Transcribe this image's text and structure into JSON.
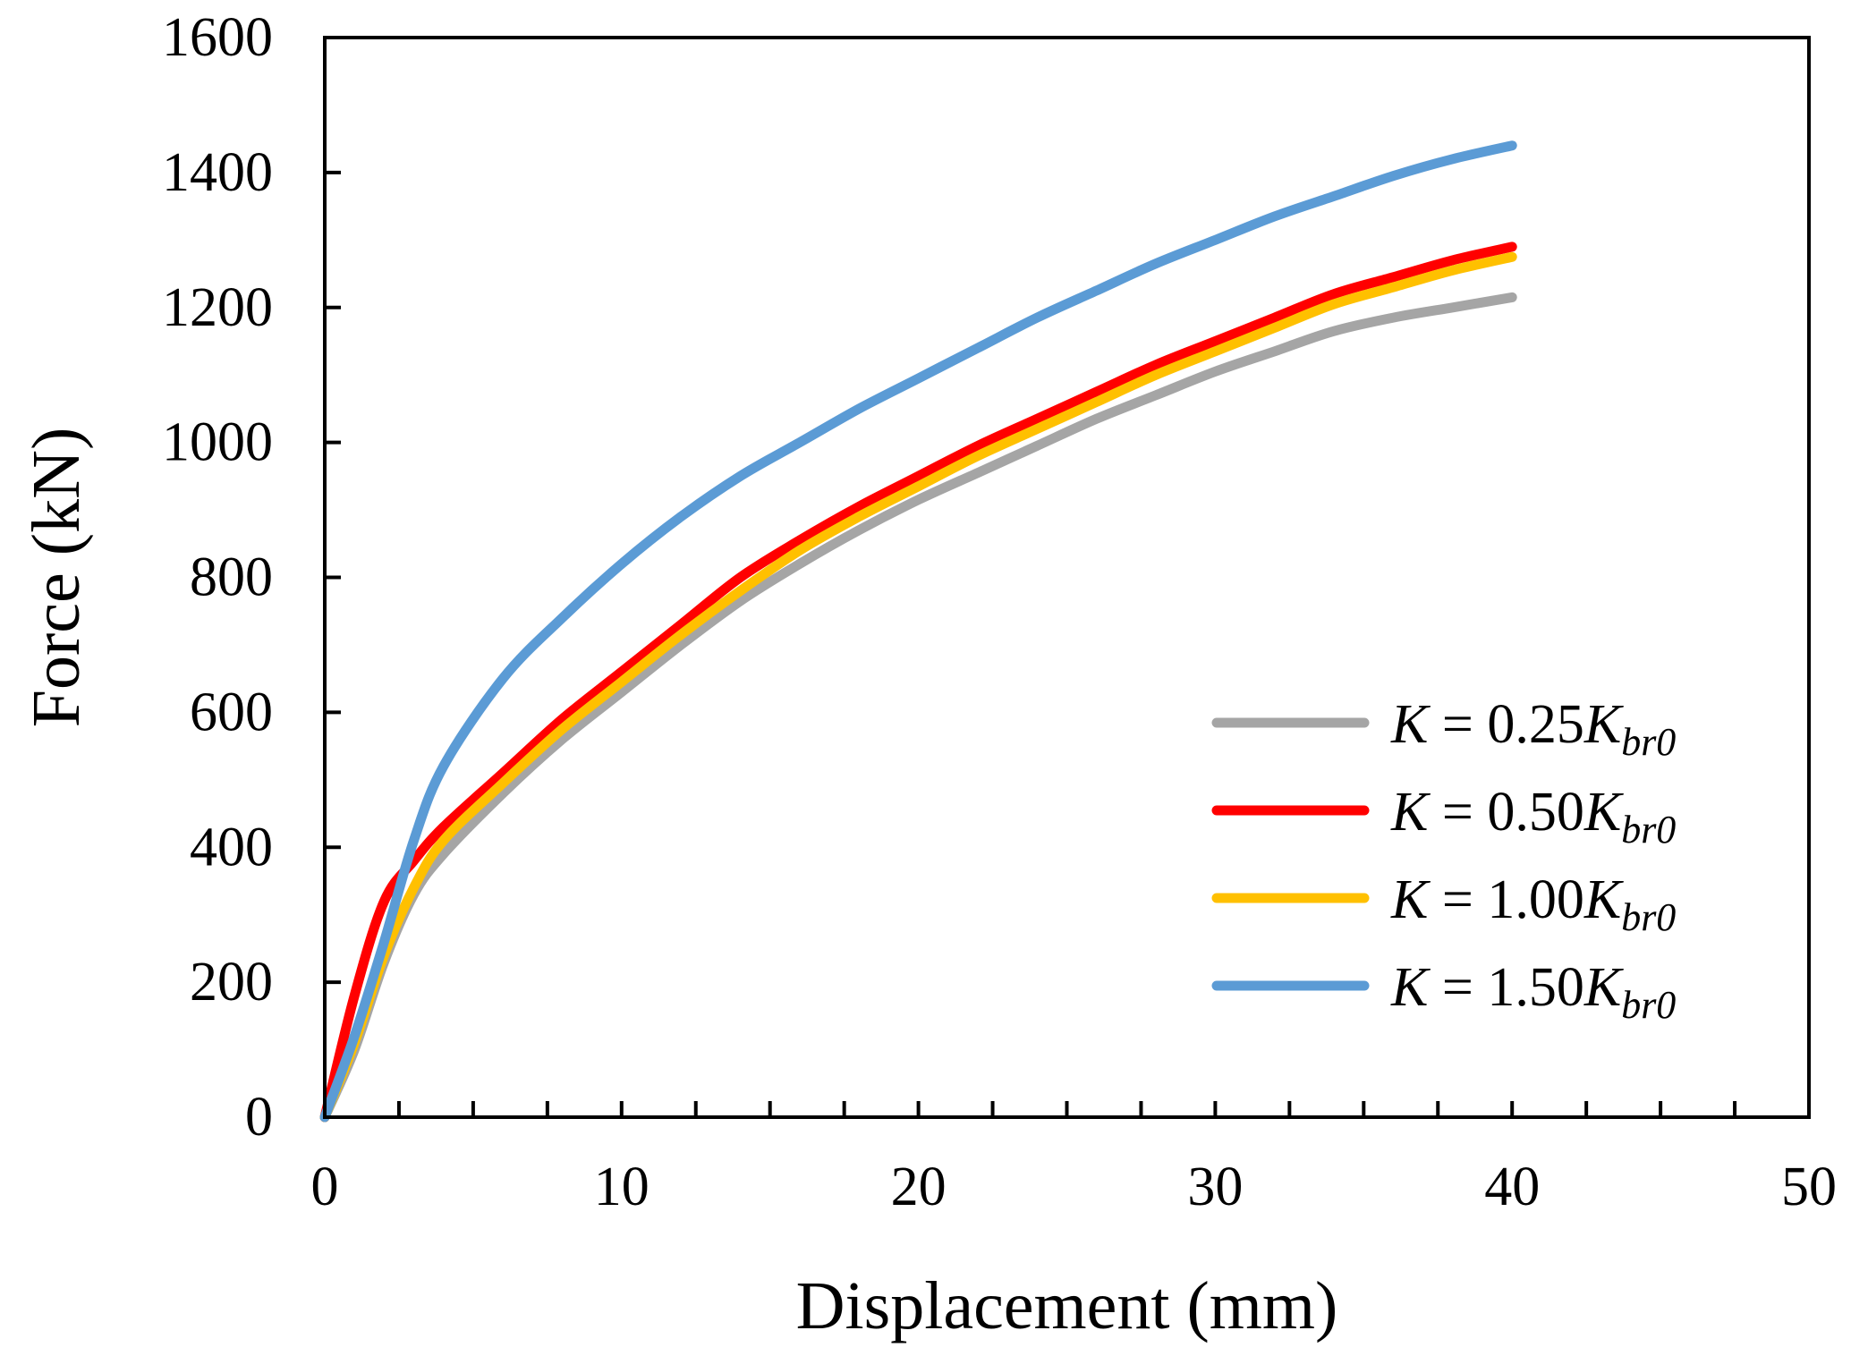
{
  "chart_data": {
    "type": "line",
    "title": "",
    "xlabel": "Displacement (mm)",
    "ylabel": "Force (kN)",
    "xlim": [
      0,
      50
    ],
    "ylim": [
      0,
      1600
    ],
    "x_ticks": [
      "0",
      "10",
      "20",
      "30",
      "40",
      "50"
    ],
    "y_ticks": [
      "0",
      "200",
      "400",
      "600",
      "800",
      "1000",
      "1200",
      "1400",
      "1600"
    ],
    "grid": false,
    "legend_position": "bottom-right",
    "series": [
      {
        "name": "K = 0.25Kbr0",
        "label_var": "K",
        "label_eq": " = 0.25",
        "label_sym": "K",
        "label_sub": "br0",
        "color": "#A5A5A5",
        "points": [
          [
            0,
            0
          ],
          [
            1,
            100
          ],
          [
            2,
            230
          ],
          [
            3,
            330
          ],
          [
            4,
            390
          ],
          [
            6,
            480
          ],
          [
            8,
            560
          ],
          [
            10,
            630
          ],
          [
            12,
            700
          ],
          [
            14,
            765
          ],
          [
            16,
            820
          ],
          [
            18,
            870
          ],
          [
            20,
            915
          ],
          [
            22,
            955
          ],
          [
            24,
            995
          ],
          [
            26,
            1035
          ],
          [
            28,
            1070
          ],
          [
            30,
            1105
          ],
          [
            32,
            1135
          ],
          [
            34,
            1165
          ],
          [
            36,
            1185
          ],
          [
            38,
            1200
          ],
          [
            40,
            1215
          ]
        ]
      },
      {
        "name": "K = 0.50Kbr0",
        "label_var": "K",
        "label_eq": " = 0.50",
        "label_sym": "K",
        "label_sub": "br0",
        "color": "#FF0000",
        "points": [
          [
            0,
            0
          ],
          [
            1,
            180
          ],
          [
            2,
            320
          ],
          [
            3,
            380
          ],
          [
            4,
            430
          ],
          [
            6,
            510
          ],
          [
            8,
            590
          ],
          [
            10,
            660
          ],
          [
            12,
            730
          ],
          [
            14,
            800
          ],
          [
            16,
            855
          ],
          [
            18,
            905
          ],
          [
            20,
            950
          ],
          [
            22,
            995
          ],
          [
            24,
            1035
          ],
          [
            26,
            1075
          ],
          [
            28,
            1115
          ],
          [
            30,
            1150
          ],
          [
            32,
            1185
          ],
          [
            34,
            1220
          ],
          [
            36,
            1245
          ],
          [
            38,
            1270
          ],
          [
            40,
            1290
          ]
        ]
      },
      {
        "name": "K = 1.00Kbr0",
        "label_var": "K",
        "label_eq": " = 1.00",
        "label_sym": "K",
        "label_sub": "br0",
        "color": "#FFC000",
        "points": [
          [
            0,
            0
          ],
          [
            1,
            110
          ],
          [
            2,
            240
          ],
          [
            3,
            340
          ],
          [
            4,
            410
          ],
          [
            6,
            495
          ],
          [
            8,
            575
          ],
          [
            10,
            645
          ],
          [
            12,
            715
          ],
          [
            14,
            780
          ],
          [
            16,
            840
          ],
          [
            18,
            890
          ],
          [
            20,
            935
          ],
          [
            22,
            980
          ],
          [
            24,
            1020
          ],
          [
            26,
            1060
          ],
          [
            28,
            1100
          ],
          [
            30,
            1135
          ],
          [
            32,
            1170
          ],
          [
            34,
            1205
          ],
          [
            36,
            1230
          ],
          [
            38,
            1255
          ],
          [
            40,
            1275
          ]
        ]
      },
      {
        "name": "K = 1.50Kbr0",
        "label_var": "K",
        "label_eq": " = 1.50",
        "label_sym": "K",
        "label_sub": "br0",
        "color": "#5B9BD5",
        "points": [
          [
            0,
            0
          ],
          [
            1,
            120
          ],
          [
            2,
            260
          ],
          [
            3,
            410
          ],
          [
            4,
            520
          ],
          [
            6,
            650
          ],
          [
            8,
            740
          ],
          [
            10,
            820
          ],
          [
            12,
            890
          ],
          [
            14,
            950
          ],
          [
            16,
            1000
          ],
          [
            18,
            1050
          ],
          [
            20,
            1095
          ],
          [
            22,
            1140
          ],
          [
            24,
            1185
          ],
          [
            26,
            1225
          ],
          [
            28,
            1265
          ],
          [
            30,
            1300
          ],
          [
            32,
            1335
          ],
          [
            34,
            1365
          ],
          [
            36,
            1395
          ],
          [
            38,
            1420
          ],
          [
            40,
            1440
          ]
        ]
      }
    ]
  }
}
